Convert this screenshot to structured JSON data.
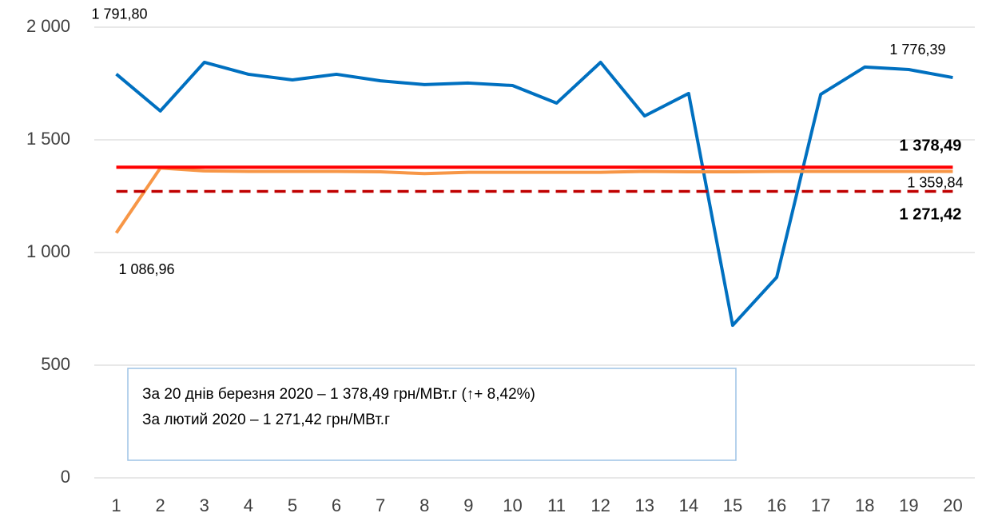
{
  "chart_data": {
    "type": "line",
    "categories": [
      "1",
      "2",
      "3",
      "4",
      "5",
      "6",
      "7",
      "8",
      "9",
      "10",
      "11",
      "12",
      "13",
      "14",
      "15",
      "16",
      "17",
      "18",
      "19",
      "20"
    ],
    "ylim": [
      0,
      2000
    ],
    "yticks": [
      {
        "value": 0,
        "label": "0"
      },
      {
        "value": 500,
        "label": "500"
      },
      {
        "value": 1000,
        "label": "1 000"
      },
      {
        "value": 1500,
        "label": "1 500"
      },
      {
        "value": 2000,
        "label": "2 000"
      }
    ],
    "grid": true,
    "series": [
      {
        "color": "#0070c0",
        "width": 4,
        "values": [
          1791.8,
          1628,
          1844,
          1791,
          1766,
          1791,
          1762,
          1745,
          1752,
          1741,
          1663,
          1844,
          1606,
          1706,
          677,
          890,
          1702,
          1823,
          1812,
          1776.39
        ],
        "value_labels": [
          "1 791,80",
          null,
          null,
          null,
          null,
          null,
          null,
          null,
          null,
          null,
          null,
          null,
          null,
          null,
          null,
          null,
          null,
          null,
          null,
          "1 776,39"
        ]
      },
      {
        "color": "#f79646",
        "width": 4,
        "values": [
          1086.96,
          1375,
          1362,
          1360,
          1360,
          1360,
          1358,
          1350,
          1356,
          1356,
          1356,
          1356,
          1360,
          1358,
          1358,
          1360,
          1360,
          1360,
          1360,
          1359.84
        ],
        "value_labels": [
          "1 086,96",
          null,
          null,
          null,
          null,
          null,
          null,
          null,
          null,
          null,
          null,
          null,
          null,
          null,
          null,
          null,
          null,
          null,
          null,
          "1 359,84"
        ]
      },
      {
        "color": "#ff0000",
        "width": 4,
        "values": [
          1378.49,
          1378.49,
          1378.49,
          1378.49,
          1378.49,
          1378.49,
          1378.49,
          1378.49,
          1378.49,
          1378.49,
          1378.49,
          1378.49,
          1378.49,
          1378.49,
          1378.49,
          1378.49,
          1378.49,
          1378.49,
          1378.49,
          1378.49
        ],
        "value_labels": [
          null,
          null,
          null,
          null,
          null,
          null,
          null,
          null,
          null,
          null,
          null,
          null,
          null,
          null,
          null,
          null,
          null,
          null,
          null,
          "1 378,49"
        ]
      },
      {
        "color": "#c00000",
        "width": 3.5,
        "dashed": true,
        "values": [
          1271.42,
          1271.42,
          1271.42,
          1271.42,
          1271.42,
          1271.42,
          1271.42,
          1271.42,
          1271.42,
          1271.42,
          1271.42,
          1271.42,
          1271.42,
          1271.42,
          1271.42,
          1271.42,
          1271.42,
          1271.42,
          1271.42,
          1271.42
        ],
        "value_labels": [
          null,
          null,
          null,
          null,
          null,
          null,
          null,
          null,
          null,
          null,
          null,
          null,
          null,
          null,
          null,
          null,
          null,
          null,
          null,
          "1 271,42"
        ]
      }
    ],
    "annotation": [
      "За 20 днів березня 2020 – 1 378,49 грн/МВт.г (↑+ 8,42%)",
      "За лютий 2020 – 1 271,42 грн/МВт.г"
    ]
  }
}
